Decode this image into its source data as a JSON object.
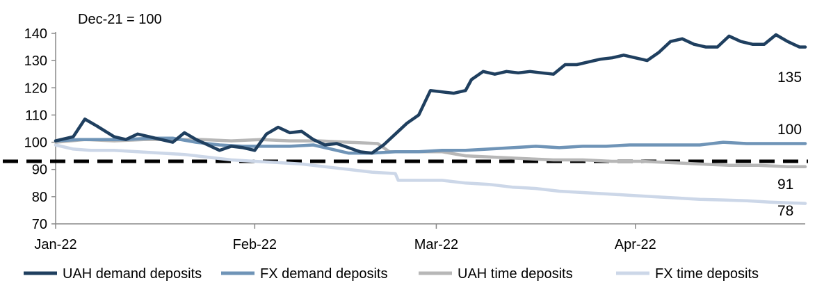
{
  "chart_data": {
    "type": "line",
    "title": "",
    "annotation": "Dec-21 = 100",
    "xlabel": "",
    "ylabel": "",
    "ylim": [
      70,
      140
    ],
    "yticks": [
      70,
      80,
      90,
      100,
      110,
      120,
      130,
      140
    ],
    "x_day_range": [
      0,
      128
    ],
    "xticks": [
      {
        "label": "Jan-22",
        "day": 0
      },
      {
        "label": "Feb-22",
        "day": 34
      },
      {
        "label": "Mar-22",
        "day": 65
      },
      {
        "label": "Apr-22",
        "day": 99
      }
    ],
    "reference_line": {
      "y": 93,
      "style": "dashed",
      "color": "#000000"
    },
    "legend_position": "bottom",
    "series": [
      {
        "name": "UAH demand deposits",
        "color": "#1f3f5f",
        "end_label": "135",
        "points": [
          [
            0,
            100.5
          ],
          [
            3,
            102
          ],
          [
            5,
            108.5
          ],
          [
            7,
            106
          ],
          [
            10,
            102
          ],
          [
            12,
            101
          ],
          [
            14,
            103
          ],
          [
            16,
            102
          ],
          [
            18,
            101
          ],
          [
            20,
            100
          ],
          [
            22,
            103.5
          ],
          [
            24,
            101
          ],
          [
            26,
            99
          ],
          [
            28,
            97
          ],
          [
            30,
            98.5
          ],
          [
            32,
            98
          ],
          [
            34,
            97
          ],
          [
            36,
            103
          ],
          [
            38,
            105.5
          ],
          [
            40,
            103.5
          ],
          [
            42,
            104
          ],
          [
            44,
            101
          ],
          [
            46,
            99
          ],
          [
            48,
            99.5
          ],
          [
            50,
            98
          ],
          [
            52,
            96.5
          ],
          [
            54,
            96
          ],
          [
            56,
            99
          ],
          [
            58,
            103
          ],
          [
            60,
            107
          ],
          [
            62,
            110
          ],
          [
            64,
            119
          ],
          [
            66,
            118.5
          ],
          [
            68,
            118
          ],
          [
            70,
            119
          ],
          [
            71,
            123
          ],
          [
            73,
            126
          ],
          [
            75,
            125
          ],
          [
            77,
            126
          ],
          [
            79,
            125.5
          ],
          [
            81,
            126
          ],
          [
            83,
            125.5
          ],
          [
            85,
            125
          ],
          [
            87,
            128.5
          ],
          [
            89,
            128.5
          ],
          [
            91,
            129.5
          ],
          [
            93,
            130.5
          ],
          [
            95,
            131
          ],
          [
            97,
            132
          ],
          [
            99,
            131
          ],
          [
            101,
            130
          ],
          [
            103,
            133
          ],
          [
            105,
            137
          ],
          [
            107,
            138
          ],
          [
            109,
            136
          ],
          [
            111,
            135
          ],
          [
            113,
            135
          ],
          [
            115,
            139
          ],
          [
            117,
            137
          ],
          [
            119,
            136
          ],
          [
            121,
            136
          ],
          [
            123,
            139.5
          ],
          [
            125,
            137
          ],
          [
            127,
            135
          ],
          [
            128,
            135
          ]
        ]
      },
      {
        "name": "FX demand deposits",
        "color": "#6f94b7",
        "end_label": "100",
        "points": [
          [
            0,
            100.5
          ],
          [
            4,
            101
          ],
          [
            8,
            101
          ],
          [
            12,
            101
          ],
          [
            16,
            101.5
          ],
          [
            20,
            101.5
          ],
          [
            24,
            100
          ],
          [
            28,
            99
          ],
          [
            32,
            98.5
          ],
          [
            36,
            98.5
          ],
          [
            40,
            98.5
          ],
          [
            44,
            99
          ],
          [
            48,
            97
          ],
          [
            50,
            96
          ],
          [
            54,
            96
          ],
          [
            58,
            96.5
          ],
          [
            62,
            96.5
          ],
          [
            66,
            97
          ],
          [
            70,
            97
          ],
          [
            74,
            97.5
          ],
          [
            78,
            98
          ],
          [
            82,
            98.5
          ],
          [
            86,
            98
          ],
          [
            90,
            98.5
          ],
          [
            94,
            98.5
          ],
          [
            98,
            99
          ],
          [
            102,
            99
          ],
          [
            106,
            99
          ],
          [
            110,
            99
          ],
          [
            114,
            100
          ],
          [
            118,
            99.5
          ],
          [
            122,
            99.5
          ],
          [
            128,
            99.5
          ]
        ]
      },
      {
        "name": "UAH time deposits",
        "color": "#b7b7b7",
        "end_label": "91",
        "points": [
          [
            0,
            100
          ],
          [
            5,
            101
          ],
          [
            10,
            100.5
          ],
          [
            15,
            101
          ],
          [
            20,
            101
          ],
          [
            25,
            101
          ],
          [
            30,
            100.5
          ],
          [
            35,
            101
          ],
          [
            40,
            100.5
          ],
          [
            45,
            100.5
          ],
          [
            50,
            100
          ],
          [
            55,
            99.5
          ],
          [
            57,
            96.5
          ],
          [
            62,
            96.5
          ],
          [
            66,
            96.5
          ],
          [
            70,
            95
          ],
          [
            75,
            94.5
          ],
          [
            80,
            94
          ],
          [
            85,
            93.5
          ],
          [
            90,
            93.5
          ],
          [
            95,
            93
          ],
          [
            100,
            93
          ],
          [
            105,
            92.5
          ],
          [
            110,
            92
          ],
          [
            115,
            91.5
          ],
          [
            120,
            91.5
          ],
          [
            125,
            91
          ],
          [
            128,
            91
          ]
        ]
      },
      {
        "name": "FX time deposits",
        "color": "#ccd7e8",
        "end_label": "78",
        "points": [
          [
            0,
            99
          ],
          [
            3,
            97.5
          ],
          [
            6,
            97
          ],
          [
            10,
            97
          ],
          [
            14,
            96.5
          ],
          [
            18,
            96
          ],
          [
            22,
            95.5
          ],
          [
            26,
            94.5
          ],
          [
            30,
            93.5
          ],
          [
            34,
            93
          ],
          [
            38,
            92.5
          ],
          [
            42,
            92
          ],
          [
            46,
            91
          ],
          [
            50,
            90
          ],
          [
            54,
            89
          ],
          [
            58,
            88.5
          ],
          [
            58.5,
            86
          ],
          [
            62,
            86
          ],
          [
            66,
            86
          ],
          [
            70,
            85
          ],
          [
            74,
            84.5
          ],
          [
            78,
            83.5
          ],
          [
            82,
            83
          ],
          [
            86,
            82
          ],
          [
            90,
            81.5
          ],
          [
            94,
            81
          ],
          [
            98,
            80.5
          ],
          [
            102,
            80
          ],
          [
            106,
            79.5
          ],
          [
            110,
            79
          ],
          [
            114,
            78.8
          ],
          [
            118,
            78.5
          ],
          [
            122,
            78
          ],
          [
            128,
            77.5
          ]
        ]
      }
    ]
  }
}
